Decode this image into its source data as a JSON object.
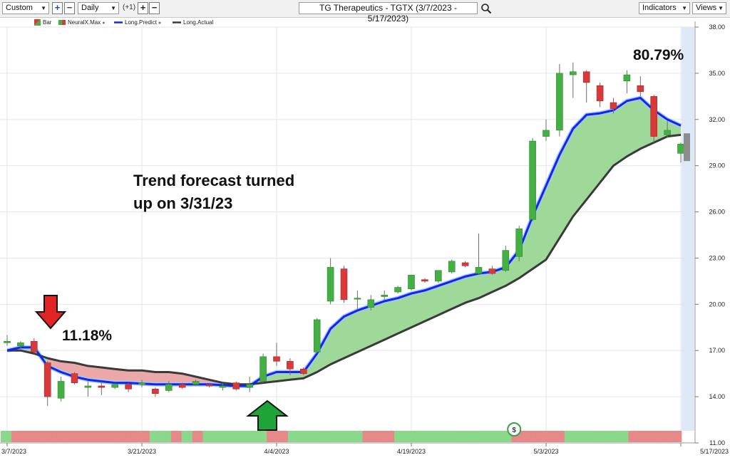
{
  "toolbar": {
    "period_select": "Custom",
    "interval_select": "Daily",
    "offset_label": "(+1)",
    "title": "TG Therapeutics - TGTX (3/7/2023 - 5/17/2023)",
    "indicators_button": "Indicators",
    "views_button": "Views",
    "plus": "+",
    "minus": "−"
  },
  "legend": {
    "items": [
      {
        "label": "Bar"
      },
      {
        "label": "NeuralX.Max"
      },
      {
        "label": "Long.Predict"
      },
      {
        "label": "Long.Actual"
      }
    ]
  },
  "annotations": {
    "left_pct": "11.18%",
    "right_pct": "80.79%",
    "forecast_line1": "Trend forecast turned",
    "forecast_line2": "up on 3/31/23"
  },
  "colors": {
    "up": "#44b043",
    "down": "#d83a3a",
    "predict": "#0b29e6",
    "actual": "#3a3a3a",
    "fill_up": "#9fd99a",
    "fill_down": "#e9a3a3",
    "strip_up": "#8ad88a",
    "strip_down": "#e88989"
  },
  "chart_data": {
    "type": "candlestick",
    "title": "TG Therapeutics - TGTX (3/7/2023 - 5/17/2023)",
    "ylim": [
      11,
      38
    ],
    "y_ticks": [
      "38.00",
      "35.00",
      "32.00",
      "29.00",
      "26.00",
      "23.00",
      "20.00",
      "17.00",
      "14.00",
      "11.00"
    ],
    "x_ticks": [
      "3/7/2023",
      "3/21/2023",
      "4/4/2023",
      "4/19/2023",
      "5/3/2023",
      "5/17/2023"
    ],
    "grid": true,
    "candles": [
      {
        "date": "3/7/2023",
        "open": 17.5,
        "high": 18.0,
        "low": 17.3,
        "close": 17.6
      },
      {
        "date": "3/8/2023",
        "open": 17.3,
        "high": 17.6,
        "low": 17.1,
        "close": 17.5
      },
      {
        "date": "3/9/2023",
        "open": 17.6,
        "high": 17.8,
        "low": 16.8,
        "close": 16.9
      },
      {
        "date": "3/10/2023",
        "open": 16.2,
        "high": 16.3,
        "low": 13.4,
        "close": 14.0
      },
      {
        "date": "3/13/2023",
        "open": 13.9,
        "high": 15.3,
        "low": 13.7,
        "close": 15.0
      },
      {
        "date": "3/14/2023",
        "open": 15.5,
        "high": 15.6,
        "low": 14.8,
        "close": 14.9
      },
      {
        "date": "3/15/2023",
        "open": 14.6,
        "high": 15.0,
        "low": 14.0,
        "close": 14.7
      },
      {
        "date": "3/16/2023",
        "open": 14.7,
        "high": 15.0,
        "low": 14.1,
        "close": 14.6
      },
      {
        "date": "3/17/2023",
        "open": 14.6,
        "high": 14.9,
        "low": 14.5,
        "close": 14.8
      },
      {
        "date": "3/20/2023",
        "open": 14.8,
        "high": 14.9,
        "low": 14.3,
        "close": 14.5
      },
      {
        "date": "3/21/2023",
        "open": 14.8,
        "high": 15.1,
        "low": 14.6,
        "close": 14.9
      },
      {
        "date": "3/22/2023",
        "open": 14.5,
        "high": 14.6,
        "low": 14.0,
        "close": 14.2
      },
      {
        "date": "3/23/2023",
        "open": 14.4,
        "high": 15.0,
        "low": 14.3,
        "close": 14.8
      },
      {
        "date": "3/24/2023",
        "open": 14.8,
        "high": 14.9,
        "low": 14.5,
        "close": 14.6
      },
      {
        "date": "3/27/2023",
        "open": 14.8,
        "high": 15.1,
        "low": 14.7,
        "close": 15.0
      },
      {
        "date": "3/28/2023",
        "open": 14.8,
        "high": 14.9,
        "low": 14.6,
        "close": 14.7
      },
      {
        "date": "3/29/2023",
        "open": 14.6,
        "high": 14.9,
        "low": 14.4,
        "close": 14.7
      },
      {
        "date": "3/30/2023",
        "open": 14.9,
        "high": 15.0,
        "low": 14.4,
        "close": 14.5
      },
      {
        "date": "3/31/2023",
        "open": 14.6,
        "high": 15.3,
        "low": 14.3,
        "close": 14.8
      },
      {
        "date": "4/3/2023",
        "open": 15.0,
        "high": 16.8,
        "low": 14.9,
        "close": 16.6
      },
      {
        "date": "4/4/2023",
        "open": 16.6,
        "high": 17.5,
        "low": 16.0,
        "close": 16.3
      },
      {
        "date": "4/5/2023",
        "open": 16.3,
        "high": 16.5,
        "low": 15.4,
        "close": 15.8
      },
      {
        "date": "4/6/2023",
        "open": 15.8,
        "high": 15.9,
        "low": 15.4,
        "close": 15.5
      },
      {
        "date": "4/10/2023",
        "open": 16.9,
        "high": 19.1,
        "low": 16.8,
        "close": 19.0
      },
      {
        "date": "4/11/2023",
        "open": 20.2,
        "high": 23.0,
        "low": 20.0,
        "close": 22.4
      },
      {
        "date": "4/12/2023",
        "open": 22.3,
        "high": 22.5,
        "low": 20.1,
        "close": 20.3
      },
      {
        "date": "4/13/2023",
        "open": 20.4,
        "high": 20.9,
        "low": 19.7,
        "close": 20.4
      },
      {
        "date": "4/14/2023",
        "open": 19.8,
        "high": 20.6,
        "low": 19.6,
        "close": 20.3
      },
      {
        "date": "4/17/2023",
        "open": 20.5,
        "high": 20.9,
        "low": 20.3,
        "close": 20.6
      },
      {
        "date": "4/18/2023",
        "open": 20.8,
        "high": 21.2,
        "low": 20.7,
        "close": 21.1
      },
      {
        "date": "4/19/2023",
        "open": 21.0,
        "high": 21.9,
        "low": 20.9,
        "close": 21.9
      },
      {
        "date": "4/20/2023",
        "open": 21.6,
        "high": 21.7,
        "low": 21.4,
        "close": 21.5
      },
      {
        "date": "4/21/2023",
        "open": 21.5,
        "high": 22.2,
        "low": 21.4,
        "close": 22.2
      },
      {
        "date": "4/24/2023",
        "open": 22.1,
        "high": 22.9,
        "low": 22.0,
        "close": 22.8
      },
      {
        "date": "4/25/2023",
        "open": 22.7,
        "high": 22.8,
        "low": 22.4,
        "close": 22.5
      },
      {
        "date": "4/26/2023",
        "open": 22.0,
        "high": 24.6,
        "low": 21.9,
        "close": 22.4
      },
      {
        "date": "4/27/2023",
        "open": 22.3,
        "high": 22.5,
        "low": 21.9,
        "close": 22.0
      },
      {
        "date": "4/28/2023",
        "open": 22.2,
        "high": 23.8,
        "low": 22.1,
        "close": 23.5
      },
      {
        "date": "5/1/2023",
        "open": 23.1,
        "high": 25.1,
        "low": 22.8,
        "close": 24.9
      },
      {
        "date": "5/2/2023",
        "open": 25.5,
        "high": 30.8,
        "low": 25.4,
        "close": 30.6
      },
      {
        "date": "5/3/2023",
        "open": 30.9,
        "high": 32.0,
        "low": 30.6,
        "close": 31.3
      },
      {
        "date": "5/4/2023",
        "open": 31.3,
        "high": 35.6,
        "low": 30.9,
        "close": 35.0
      },
      {
        "date": "5/5/2023",
        "open": 34.9,
        "high": 35.7,
        "low": 33.4,
        "close": 35.1
      },
      {
        "date": "5/8/2023",
        "open": 35.1,
        "high": 35.2,
        "low": 33.1,
        "close": 34.4
      },
      {
        "date": "5/9/2023",
        "open": 34.2,
        "high": 34.4,
        "low": 32.8,
        "close": 33.2
      },
      {
        "date": "5/10/2023",
        "open": 33.1,
        "high": 33.4,
        "low": 32.4,
        "close": 32.7
      },
      {
        "date": "5/11/2023",
        "open": 34.5,
        "high": 35.2,
        "low": 33.7,
        "close": 34.9
      },
      {
        "date": "5/12/2023",
        "open": 34.2,
        "high": 34.8,
        "low": 33.5,
        "close": 33.8
      },
      {
        "date": "5/15/2023",
        "open": 33.5,
        "high": 33.6,
        "low": 30.5,
        "close": 30.9
      },
      {
        "date": "5/16/2023",
        "open": 31.0,
        "high": 31.9,
        "low": 30.8,
        "close": 31.3
      },
      {
        "date": "5/17/2023",
        "open": 29.8,
        "high": 30.5,
        "low": 29.2,
        "close": 30.4
      }
    ],
    "series": [
      {
        "name": "Long.Predict",
        "values": [
          17.0,
          17.2,
          17.2,
          16.0,
          15.6,
          15.3,
          15.1,
          15.0,
          14.9,
          14.9,
          14.85,
          14.8,
          14.8,
          14.8,
          14.8,
          14.8,
          14.75,
          14.7,
          14.7,
          15.3,
          15.6,
          15.6,
          15.6,
          16.8,
          18.4,
          19.2,
          19.6,
          19.9,
          20.2,
          20.4,
          20.7,
          20.9,
          21.2,
          21.5,
          21.8,
          22.0,
          22.1,
          22.4,
          23.5,
          25.7,
          27.7,
          29.7,
          31.4,
          32.3,
          32.4,
          32.6,
          33.2,
          33.4,
          32.6,
          32.0,
          31.6
        ]
      },
      {
        "name": "Long.Actual",
        "values": [
          17.0,
          17.0,
          16.8,
          16.5,
          16.3,
          16.2,
          16.0,
          15.9,
          15.8,
          15.7,
          15.7,
          15.6,
          15.6,
          15.5,
          15.3,
          15.1,
          14.9,
          14.8,
          14.8,
          14.9,
          15.0,
          15.1,
          15.2,
          15.6,
          16.1,
          16.5,
          16.9,
          17.3,
          17.7,
          18.1,
          18.5,
          18.9,
          19.3,
          19.7,
          20.1,
          20.4,
          20.8,
          21.2,
          21.7,
          22.3,
          22.9,
          24.3,
          25.7,
          26.8,
          27.9,
          29.0,
          29.6,
          30.1,
          30.5,
          30.9,
          31.0
        ]
      }
    ],
    "neuralx_strip": [
      "up",
      "down",
      "down",
      "down",
      "down",
      "down",
      "down",
      "down",
      "down",
      "down",
      "down",
      "down",
      "down",
      "down",
      "up",
      "up",
      "down",
      "up",
      "down",
      "up",
      "up",
      "up",
      "up",
      "up",
      "up",
      "down",
      "down",
      "up",
      "up",
      "up",
      "up",
      "up",
      "up",
      "up",
      "down",
      "down",
      "down",
      "up",
      "up",
      "up",
      "up",
      "up",
      "up",
      "up",
      "up",
      "up",
      "up",
      "up",
      "down",
      "down",
      "down",
      "down",
      "down",
      "up",
      "up",
      "up",
      "up",
      "up",
      "up",
      "down",
      "down",
      "down",
      "down",
      "down"
    ],
    "dividend_marker": {
      "date": "5/1/2023",
      "label": "$"
    }
  }
}
